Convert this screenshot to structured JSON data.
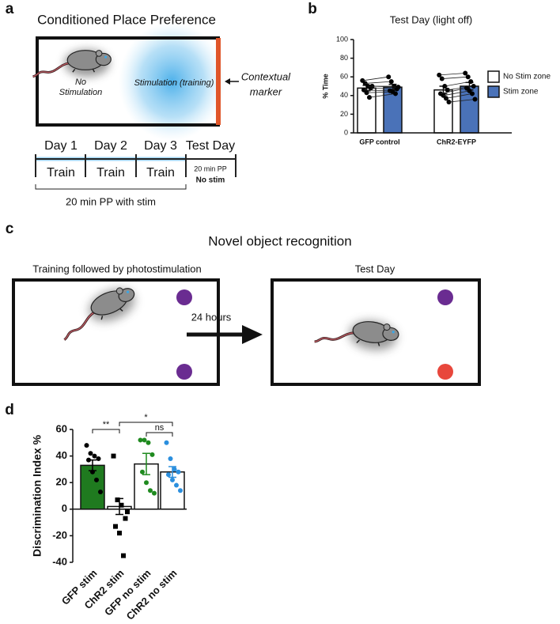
{
  "panel_a": {
    "label": "a",
    "title": "Conditioned Place Preference",
    "no_stim": [
      "No",
      "Stimulation"
    ],
    "stim": "Stimulation (training)",
    "marker": [
      "Contextual",
      "marker"
    ],
    "days": [
      "Day 1",
      "Day 2",
      "Day 3",
      "Test Day"
    ],
    "train": [
      "Train",
      "Train",
      "Train"
    ],
    "test_note": [
      "20 min PP",
      "No stim"
    ],
    "bracket": "20 min PP with stim"
  },
  "panel_c": {
    "label": "c",
    "title": "Novel object recognition",
    "training": "Training followed by photostimulation",
    "test": "Test Day",
    "delay": "24 hours"
  },
  "chart_data": [
    {
      "type": "bar",
      "panel": "b",
      "title": "Test Day (light off)",
      "y_label": "% Time",
      "categories": [
        "GFP control",
        "ChR2-EYFP"
      ],
      "series": [
        {
          "name": "No Stim zone",
          "color": "#ffffff",
          "values": [
            48,
            46
          ],
          "errors": [
            3,
            4
          ],
          "points": [
            [
              56,
              53,
              50,
              48,
              46,
              43,
              38,
              50
            ],
            [
              62,
              58,
              50,
              46,
              42,
              40,
              37,
              33
            ]
          ]
        },
        {
          "name": "Stim zone",
          "color": "#4a72b8",
          "values": [
            49,
            50
          ],
          "errors": [
            3,
            4
          ],
          "points": [
            [
              60,
              55,
              50,
              47,
              45,
              44,
              42,
              49
            ],
            [
              64,
              60,
              55,
              50,
              48,
              45,
              42,
              36
            ]
          ]
        }
      ],
      "paired": true,
      "ylim": [
        0,
        100
      ],
      "yticks": [
        0,
        20,
        40,
        60,
        80,
        100
      ],
      "legend": "right"
    },
    {
      "type": "bar",
      "panel": "d",
      "y_label": "Discrimination Index %",
      "categories": [
        "GFP stim",
        "ChR2 stim",
        "GFP no stim",
        "ChR2 no stim"
      ],
      "values": [
        33,
        2,
        34,
        28
      ],
      "errors": [
        4,
        6,
        8,
        4
      ],
      "colors": [
        "#1f7a1f",
        "#ffffff",
        "#ffffff",
        "#ffffff"
      ],
      "point_colors": [
        "#000000",
        "#000000",
        "#1f8a1f",
        "#2b8fde"
      ],
      "point_markers": [
        "circle",
        "square",
        "circle",
        "circle"
      ],
      "points": [
        [
          48,
          42,
          40,
          38,
          37,
          28,
          22,
          13
        ],
        [
          40,
          7,
          3,
          -7,
          -13,
          -18,
          -35,
          -2
        ],
        [
          52,
          52,
          50,
          41,
          28,
          20,
          14,
          12
        ],
        [
          50,
          38,
          30,
          28,
          26,
          22,
          18,
          14
        ]
      ],
      "ylim": [
        -40,
        60
      ],
      "yticks": [
        -40,
        -20,
        0,
        20,
        40,
        60
      ],
      "annotations": [
        "**",
        "*",
        "ns"
      ]
    }
  ]
}
